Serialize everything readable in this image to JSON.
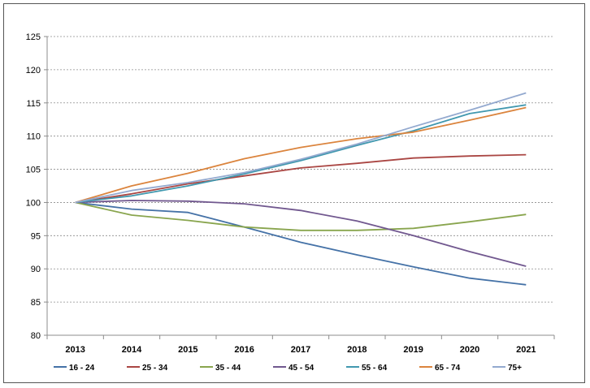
{
  "chart_data": {
    "type": "line",
    "title": "",
    "xlabel": "",
    "ylabel": "",
    "x": [
      "2013",
      "2014",
      "2015",
      "2016",
      "2017",
      "2018",
      "2019",
      "2020",
      "2021"
    ],
    "ylim": [
      80,
      125
    ],
    "yticks": [
      80,
      85,
      90,
      95,
      100,
      105,
      110,
      115,
      120,
      125
    ],
    "grid": "horizontal dashed",
    "legend_position": "bottom",
    "series": [
      {
        "name": "16 - 24",
        "color": "#4572a7",
        "values": [
          100,
          99.0,
          98.5,
          96.3,
          94.0,
          92.1,
          90.3,
          88.6,
          87.6
        ]
      },
      {
        "name": "25 - 34",
        "color": "#aa4643",
        "values": [
          100,
          101.3,
          102.8,
          104.0,
          105.2,
          105.9,
          106.7,
          107.0,
          107.2
        ]
      },
      {
        "name": "35 - 44",
        "color": "#89a54e",
        "values": [
          100,
          98.1,
          97.3,
          96.3,
          95.8,
          95.8,
          96.1,
          97.1,
          98.2
        ]
      },
      {
        "name": "45 - 54",
        "color": "#71588f",
        "values": [
          100,
          100.3,
          100.2,
          99.8,
          98.8,
          97.2,
          95.0,
          92.6,
          90.4
        ]
      },
      {
        "name": "55 - 64",
        "color": "#4198af",
        "values": [
          100,
          101.0,
          102.5,
          104.3,
          106.3,
          108.6,
          110.8,
          113.4,
          114.7
        ]
      },
      {
        "name": "65 - 74",
        "color": "#db843d",
        "values": [
          100,
          102.5,
          104.4,
          106.6,
          108.3,
          109.6,
          110.6,
          112.4,
          114.3
        ]
      },
      {
        "name": "75+",
        "color": "#93a9cf",
        "values": [
          100,
          101.8,
          103.0,
          104.5,
          106.5,
          108.8,
          111.4,
          113.9,
          116.5
        ]
      }
    ]
  }
}
